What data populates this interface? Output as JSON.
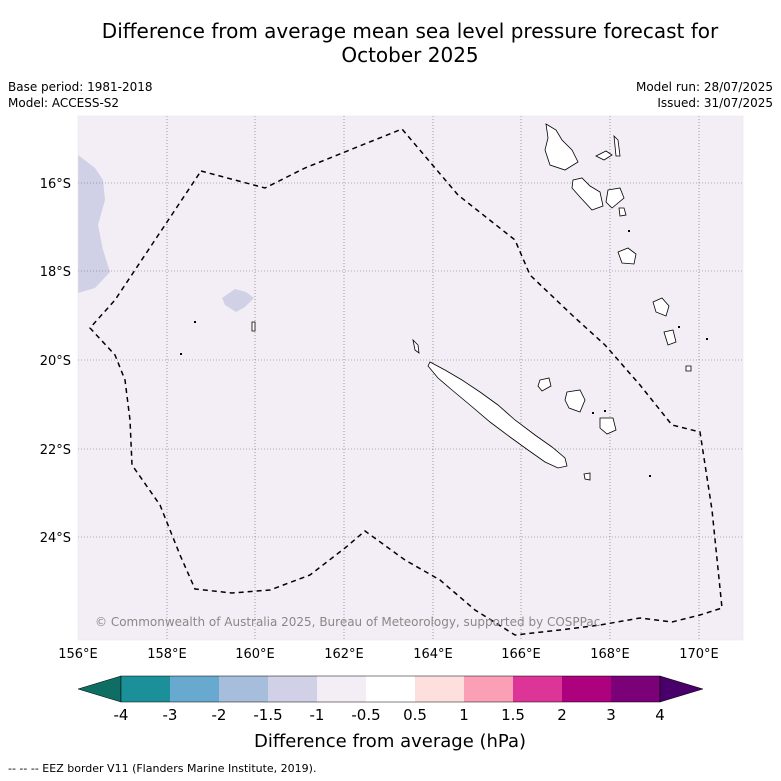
{
  "title_line1": "Difference from average mean sea level pressure forecast for",
  "title_line2": "October 2025",
  "base_period": "Base period: 1981-2018",
  "model": "Model: ACCESS-S2",
  "model_run": "Model run: 28/07/2025",
  "issued": "Issued: 31/07/2025",
  "copyright": "© Commonwealth of Australia 2025, Bureau of Meteorology, supported by COSPPac",
  "lat_ticks": [
    "16°S",
    "18°S",
    "20°S",
    "22°S",
    "24°S"
  ],
  "lon_ticks": [
    "156°E",
    "158°E",
    "160°E",
    "162°E",
    "164°E",
    "166°E",
    "168°E",
    "170°E"
  ],
  "colorbar": {
    "labels": [
      "-4",
      "-3",
      "-2",
      "-1.5",
      "-1",
      "-0.5",
      "0.5",
      "1",
      "1.5",
      "2",
      "3",
      "4"
    ],
    "colors": [
      "#0e6e64",
      "#1c9099",
      "#67a9cf",
      "#a6bddb",
      "#d0d1e6",
      "#f3eef6",
      "#ffffff",
      "#fde0dd",
      "#fa9fb5",
      "#dd3497",
      "#ae017e",
      "#7a0177",
      "#49006a"
    ],
    "title": "Difference from average (hPa)"
  },
  "footnote": "--  --  -- EEZ border V11 (Flanders Marine Institute, 2019)."
}
